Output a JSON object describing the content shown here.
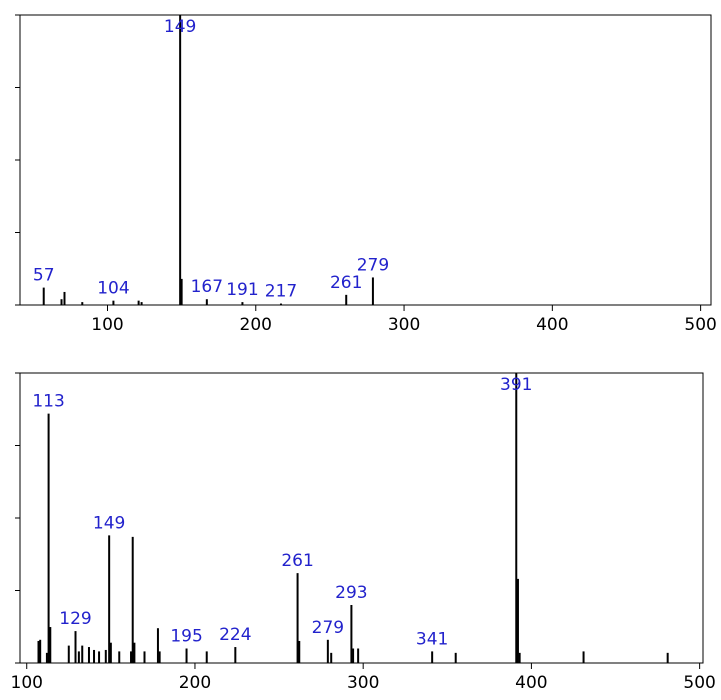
{
  "chart_data": [
    {
      "type": "stem",
      "color": "#000000",
      "label_color": "#2222cc",
      "x": [
        57,
        69,
        71,
        83,
        104,
        121,
        123,
        149,
        150,
        167,
        191,
        217,
        261,
        279
      ],
      "values": [
        6,
        2,
        4.5,
        1,
        1.5,
        1.5,
        1,
        100,
        9,
        2,
        1,
        0.5,
        3.5,
        9.5
      ],
      "annotations": [
        57,
        104,
        149,
        167,
        191,
        217,
        261,
        279
      ],
      "xlim": [
        41,
        507
      ],
      "ylim": [
        0,
        100
      ],
      "xticks": [
        100,
        200,
        300,
        400,
        500
      ],
      "yticks": [
        0,
        25,
        50,
        75,
        100
      ]
    },
    {
      "type": "stem",
      "color": "#000000",
      "label_color": "#2222cc",
      "x": [
        107,
        108,
        112,
        113,
        114,
        125,
        129,
        131,
        133,
        137,
        140,
        143,
        147,
        149,
        150,
        155,
        162,
        163,
        164,
        170,
        178,
        179,
        195,
        207,
        224,
        261,
        262,
        279,
        281,
        293,
        294,
        297,
        341,
        355,
        391,
        392,
        393,
        431,
        481
      ],
      "values": [
        7.6,
        8,
        3.5,
        86,
        12.4,
        6,
        11,
        4,
        6,
        5.5,
        4.5,
        4,
        4.5,
        44,
        7,
        4,
        4,
        43.5,
        7,
        4,
        12,
        4,
        5,
        4,
        5.5,
        31,
        7.6,
        8,
        3.5,
        20,
        5,
        5,
        4,
        3.5,
        100,
        29,
        3.5,
        4,
        3.5
      ],
      "annotations": [
        113,
        129,
        149,
        195,
        224,
        261,
        279,
        293,
        341,
        391
      ],
      "xlim": [
        96,
        502
      ],
      "ylim": [
        0,
        100
      ],
      "xticks": [
        100,
        200,
        300,
        400,
        500
      ],
      "yticks": [
        0,
        25,
        50,
        75,
        100
      ]
    }
  ]
}
